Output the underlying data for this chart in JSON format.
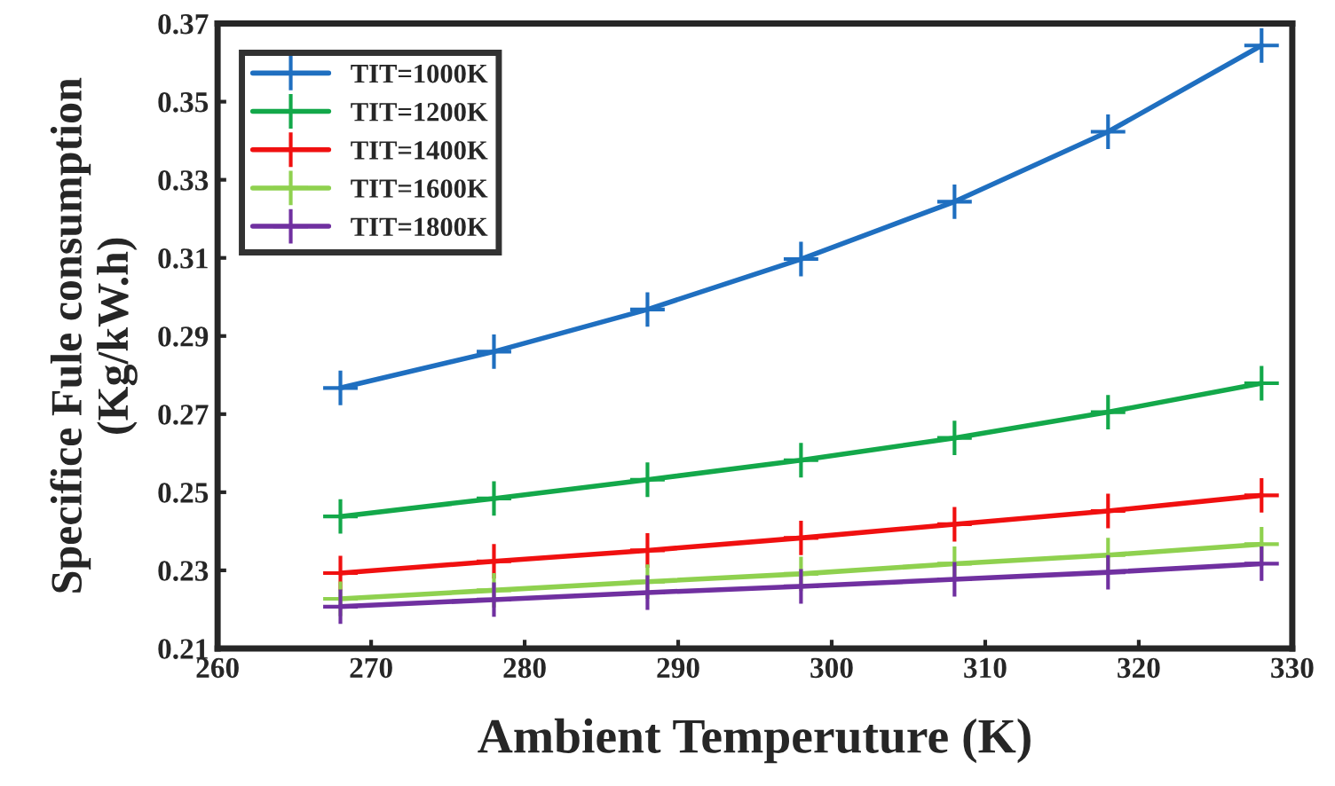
{
  "chart_data": {
    "type": "line",
    "xlabel": "Ambient Temperuture (K)",
    "ylabel": "Specifice Fule consumption\n(Kg/kW.h)",
    "x": [
      268,
      278,
      288,
      298,
      308,
      318,
      328
    ],
    "series": [
      {
        "name": "TIT=1000K",
        "color": "#1f6fc0",
        "values": [
          0.2767,
          0.286,
          0.2968,
          0.3097,
          0.3244,
          0.3423,
          0.3644
        ]
      },
      {
        "name": "TIT=1200K",
        "color": "#13a84a",
        "values": [
          0.2438,
          0.2484,
          0.2532,
          0.2582,
          0.2639,
          0.2705,
          0.2779
        ]
      },
      {
        "name": "TIT=1400K",
        "color": "#f01010",
        "values": [
          0.2293,
          0.2323,
          0.2351,
          0.2383,
          0.2418,
          0.2452,
          0.2492
        ]
      },
      {
        "name": "TIT=1600K",
        "color": "#8fd14f",
        "values": [
          0.2227,
          0.2249,
          0.2271,
          0.2291,
          0.2317,
          0.2339,
          0.2367
        ]
      },
      {
        "name": "TIT=1800K",
        "color": "#7030a0",
        "values": [
          0.2207,
          0.2225,
          0.2243,
          0.2259,
          0.2277,
          0.2295,
          0.2317
        ]
      }
    ],
    "xlim": [
      260,
      330
    ],
    "xticks": [
      260,
      270,
      280,
      290,
      300,
      310,
      320,
      330
    ],
    "ylim": [
      0.21,
      0.37
    ],
    "yticks": [
      0.21,
      0.23,
      0.25,
      0.27,
      0.29,
      0.31,
      0.33,
      0.35,
      0.37
    ],
    "marker": "cross",
    "line_style": "solid",
    "legend": "top left",
    "grid": false
  }
}
